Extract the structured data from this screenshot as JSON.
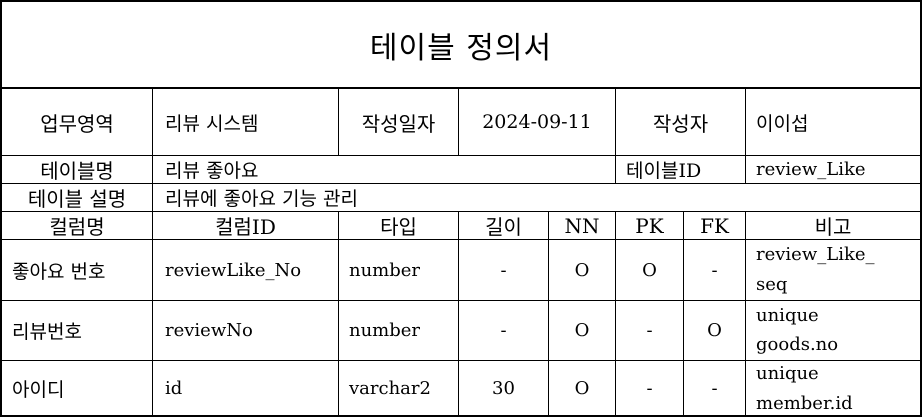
{
  "title": "테이블 정의서",
  "info": {
    "business_area_label": "업무영역",
    "business_area_value": "리뷰 시스템",
    "date_label": "작성일자",
    "date_value": "2024-09-11",
    "author_label": "작성자",
    "author_value": "이이섭",
    "table_name_label": "테이블명",
    "table_name_value": "리뷰 좋아요",
    "table_id_label": "테이블ID",
    "table_id_value": "review_Like",
    "table_desc_label": "테이블 설명",
    "table_desc_value": "리뷰에 좋아요 기능 관리"
  },
  "columns_header": {
    "name": "컬럼명",
    "id": "컬럼ID",
    "type": "타입",
    "length": "길이",
    "nn": "NN",
    "pk": "PK",
    "fk": "FK",
    "note": "비고"
  },
  "rows": [
    {
      "name": "좋아요 번호",
      "id": "reviewLike_No",
      "type": "number",
      "length": "-",
      "nn": "O",
      "pk": "O",
      "fk": "-",
      "note1": "review_Like_",
      "note2": "seq"
    },
    {
      "name": "리뷰번호",
      "id": "reviewNo",
      "type": "number",
      "length": "-",
      "nn": "O",
      "pk": "-",
      "fk": "O",
      "note1": "unique",
      "note2": "goods.no"
    },
    {
      "name": "아이디",
      "id": "id",
      "type": "varchar2",
      "length": "30",
      "nn": "O",
      "pk": "-",
      "fk": "-",
      "note1": "unique",
      "note2": "member.id"
    }
  ]
}
